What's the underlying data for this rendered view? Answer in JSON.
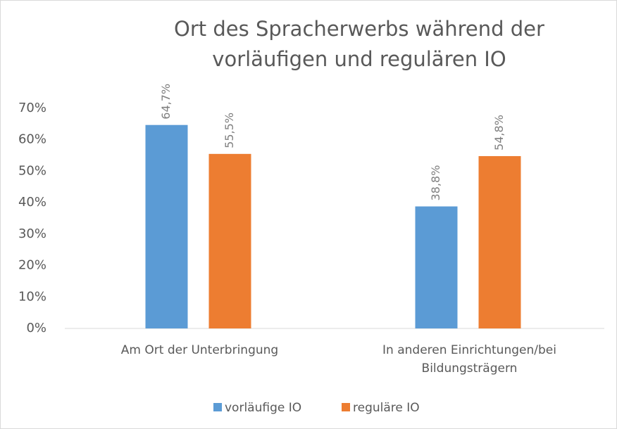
{
  "chart_data": {
    "type": "bar",
    "title": "Ort des Spracherwerbs während der vorläufigen und regulären IO",
    "categories": [
      "Am Ort der Unterbringung",
      "In anderen Einrichtungen/bei Bildungsträgern"
    ],
    "series": [
      {
        "name": "vorläufige IO",
        "color": "#5b9bd5",
        "values": [
          64.7,
          38.8
        ],
        "value_labels": [
          "64,7%",
          "38,8%"
        ]
      },
      {
        "name": "reguläre IO",
        "color": "#ed7d31",
        "values": [
          55.5,
          54.8
        ],
        "value_labels": [
          "55,5%",
          "54,8%"
        ]
      }
    ],
    "ylim": [
      0,
      70
    ],
    "yticks": [
      {
        "value": 0,
        "label": "0%"
      },
      {
        "value": 10,
        "label": "10%"
      },
      {
        "value": 20,
        "label": "20%"
      },
      {
        "value": 30,
        "label": "30%"
      },
      {
        "value": 40,
        "label": "40%"
      },
      {
        "value": 50,
        "label": "50%"
      },
      {
        "value": 60,
        "label": "60%"
      },
      {
        "value": 70,
        "label": "70%"
      }
    ],
    "grid": false,
    "legend": "bottom"
  }
}
